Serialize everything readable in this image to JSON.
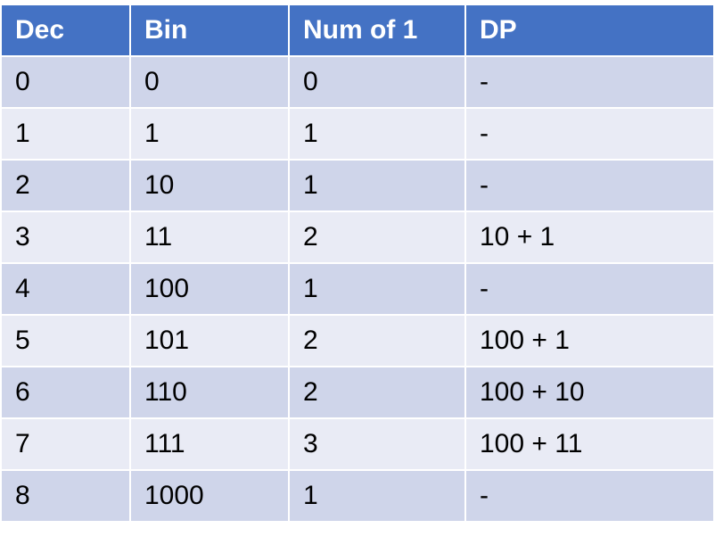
{
  "table": {
    "headers": [
      "Dec",
      "Bin",
      "Num of 1",
      "DP"
    ],
    "rows": [
      [
        "0",
        "0",
        "0",
        "-"
      ],
      [
        "1",
        "1",
        "1",
        "-"
      ],
      [
        "2",
        "10",
        "1",
        "-"
      ],
      [
        "3",
        "11",
        "2",
        "10 + 1"
      ],
      [
        "4",
        "100",
        "1",
        "-"
      ],
      [
        "5",
        "101",
        "2",
        "100 + 1"
      ],
      [
        "6",
        "110",
        "2",
        "100 + 10"
      ],
      [
        "7",
        "111",
        "3",
        "100 + 11"
      ],
      [
        "8",
        "1000",
        "1",
        "-"
      ]
    ]
  },
  "colors": {
    "header_bg": "#4472c4",
    "header_text": "#ffffff",
    "row_band_dark": "#cfd5ea",
    "row_band_light": "#e9ebf5"
  }
}
